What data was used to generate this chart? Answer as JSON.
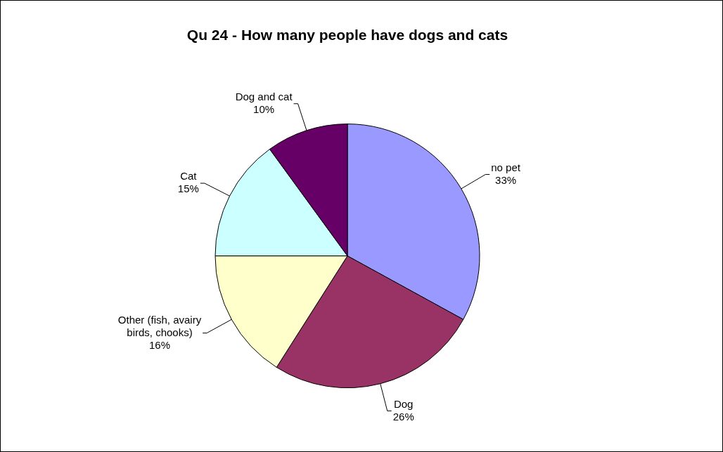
{
  "chart_data": {
    "type": "pie",
    "title": "Qu 24 - How many people have dogs and cats",
    "categories": [
      "no pet",
      "Dog",
      "Other (fish, avairy birds, chooks)",
      "Cat",
      "Dog and cat"
    ],
    "values": [
      33,
      26,
      16,
      15,
      10
    ],
    "value_labels": [
      "33%",
      "26%",
      "16%",
      "15%",
      "10%"
    ],
    "colors": [
      "#9999ff",
      "#993366",
      "#ffffcc",
      "#ccffff",
      "#660066"
    ],
    "legend": false
  }
}
